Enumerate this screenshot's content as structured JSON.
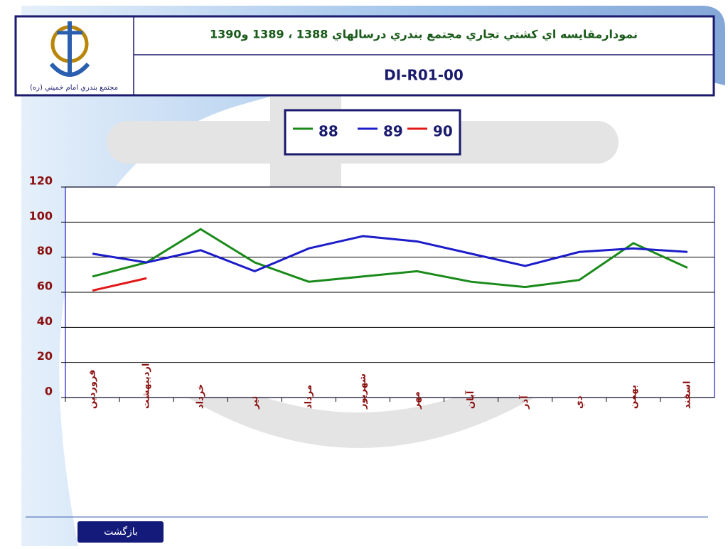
{
  "header": {
    "title": "نمودارمقايسه اي كشتي تجاري مجتمع بندري درسالهاي 1388 ، 1389 و1390",
    "code": "DI-R01-00",
    "logo_caption": "مجتمع بندري امام خميني (ره)"
  },
  "chart_data": {
    "type": "line",
    "categories": [
      "فروردين",
      "ارديبهشت",
      "خرداد",
      "تير",
      "مرداد",
      "شهريور",
      "مهر",
      "آبان",
      "آذر",
      "دي",
      "بهمن",
      "اسفند"
    ],
    "series": [
      {
        "name": "88",
        "color": "#1a8a1a",
        "values": [
          69,
          77,
          96,
          77,
          66,
          69,
          72,
          66,
          63,
          67,
          88,
          74
        ]
      },
      {
        "name": "89",
        "color": "#1c1cc8",
        "values": [
          82,
          77,
          84,
          72,
          85,
          92,
          89,
          82,
          75,
          83,
          85,
          83
        ]
      },
      {
        "name": "90",
        "color": "#e01818",
        "values": [
          61,
          68,
          null,
          null,
          null,
          null,
          null,
          null,
          null,
          null,
          null,
          null
        ]
      }
    ],
    "ylim": [
      0,
      120
    ],
    "yticks": [
      0,
      20,
      40,
      60,
      80,
      100,
      120
    ],
    "grid": true
  },
  "footer": {
    "button": "بازگشت"
  }
}
